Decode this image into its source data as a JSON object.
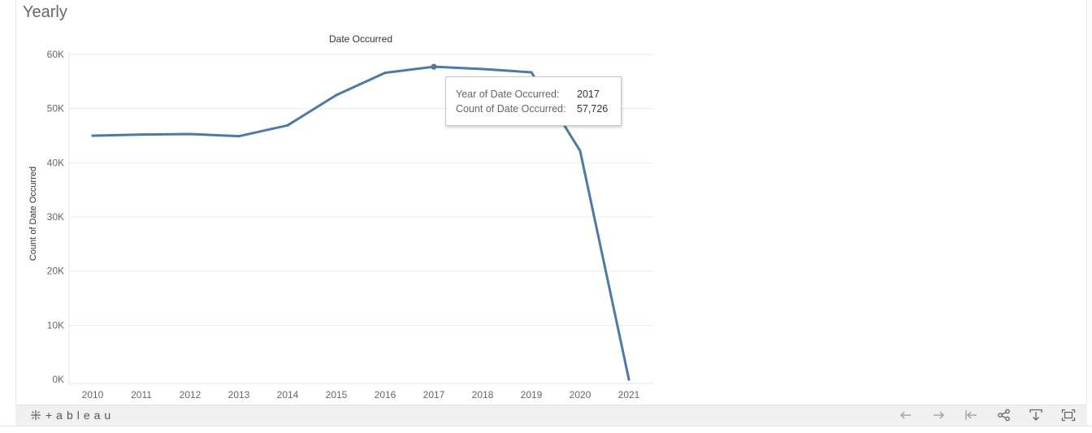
{
  "sheet_title": "Yearly",
  "chart_data": {
    "type": "line",
    "title": "Date Occurred",
    "xlabel": "",
    "ylabel": "Count of Date Occurred",
    "x": [
      "2010",
      "2011",
      "2012",
      "2013",
      "2014",
      "2015",
      "2016",
      "2017",
      "2018",
      "2019",
      "2020",
      "2021"
    ],
    "series": [
      {
        "values": [
          45000,
          45200,
          45300,
          44900,
          46900,
          52500,
          56600,
          57726,
          57300,
          56700,
          42200,
          0
        ]
      }
    ],
    "ylim": [
      0,
      60000
    ],
    "yticks": [
      0,
      10000,
      20000,
      30000,
      40000,
      50000,
      60000
    ],
    "ytick_labels": [
      "0K",
      "10K",
      "20K",
      "30K",
      "40K",
      "50K",
      "60K"
    ],
    "grid": true,
    "legend": "none",
    "line_color": "#4e79a7",
    "highlight_index": 7
  },
  "tooltip": {
    "rows": [
      {
        "label": "Year of Date Occurred:",
        "value": "2017"
      },
      {
        "label": "Count of Date Occurred:",
        "value": "57,726"
      }
    ]
  },
  "toolbar": {
    "logo_text": "+ableau",
    "buttons": [
      {
        "name": "undo-button",
        "icon": "arrow-left-icon"
      },
      {
        "name": "redo-button",
        "icon": "arrow-right-icon"
      },
      {
        "name": "revert-button",
        "icon": "revert-icon"
      },
      {
        "name": "share-button",
        "icon": "share-icon"
      },
      {
        "name": "download-button",
        "icon": "download-icon"
      },
      {
        "name": "fullscreen-button",
        "icon": "fullscreen-icon"
      }
    ]
  }
}
